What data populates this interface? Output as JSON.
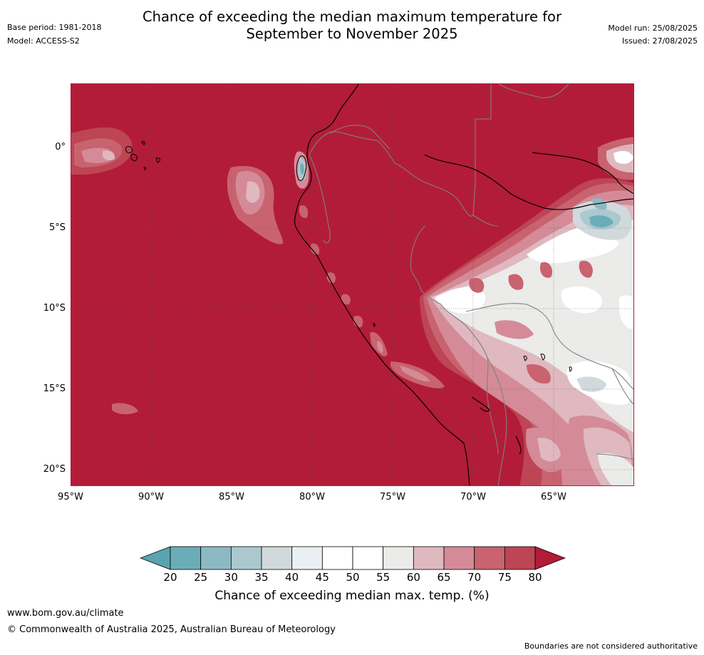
{
  "header": {
    "title_line1": "Chance of exceeding the median maximum temperature for",
    "title_line2": "September to November 2025",
    "base_period": "Base period: 1981-2018",
    "model": "Model: ACCESS-S2",
    "model_run": "Model run: 25/08/2025",
    "issued": "Issued: 27/08/2025"
  },
  "map": {
    "region": "South America (west coast, Ecuador–Peru–Bolivia)",
    "lon_range": [
      "95°W",
      "60°W"
    ],
    "lat_range": [
      "4°N",
      "21°S"
    ],
    "x_ticks": [
      "95°W",
      "90°W",
      "85°W",
      "80°W",
      "75°W",
      "70°W",
      "65°W"
    ],
    "y_ticks": [
      "0°",
      "5°S",
      "10°S",
      "15°S",
      "20°S"
    ],
    "gridlines": true,
    "dominant_category": "80+",
    "colors": {
      "ocean_background": "#b21c38",
      "coastline": "#000000",
      "borders": "#808080",
      "gridline": "#555555"
    }
  },
  "colorbar": {
    "label": "Chance of exceeding median max. temp. (%)",
    "ticks": [
      "20",
      "25",
      "30",
      "35",
      "40",
      "45",
      "50",
      "55",
      "60",
      "65",
      "70",
      "75",
      "80"
    ],
    "colors": [
      "#5aa3b1",
      "#6aadb9",
      "#8db9c4",
      "#abc8cf",
      "#d1d9dc",
      "#e9eff2",
      "#ffffff",
      "#ffffff",
      "#ebebea",
      "#e0b8bf",
      "#d48b97",
      "#c8636f",
      "#bd4554",
      "#b21c38"
    ],
    "extend": "both"
  },
  "footer": {
    "website": "www.bom.gov.au/climate",
    "copyright": "© Commonwealth of Australia 2025, Australian Bureau of Meteorology",
    "disclaimer": "Boundaries are not considered authoritative"
  }
}
